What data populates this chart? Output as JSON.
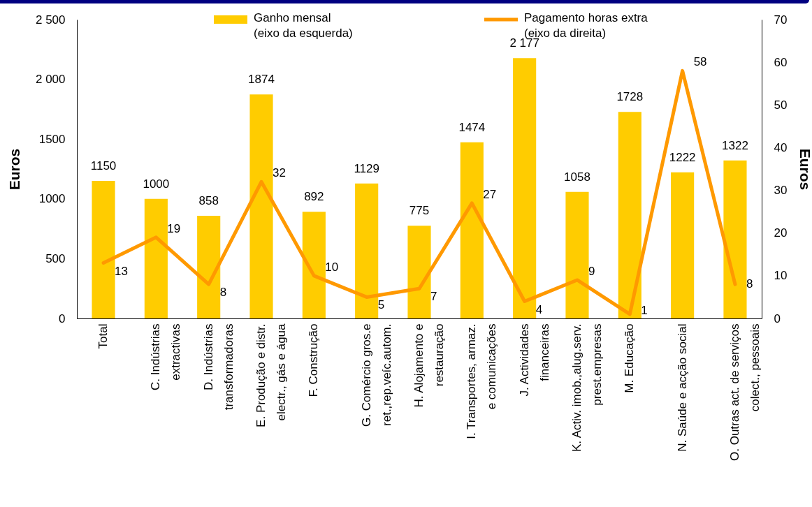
{
  "chart_data": {
    "type": "bar",
    "categories": [
      "Total",
      "C. Indústrias\nextractivas",
      "D. Indústrias\ntransformadoras",
      "E. Produção e distr.\nelectr., gás e água",
      "F. Construção",
      "G. Comércio gros.e\nret.,rep.veíc.autom.",
      "H. Alojamento e\nrestauração",
      "I. Transportes, armaz.\ne comunicações",
      "J. Actividades\nfinanceiras",
      "K. Activ. imob.,alug.serv.\nprest.empresas",
      "M. Educação",
      "N. Saúde e acção social",
      "O. Outras act. de serviços\ncolect., pessoais"
    ],
    "ylabel": "Euros",
    "y2label": "Euros",
    "ylim": [
      0,
      2500
    ],
    "yticks": [
      0,
      500,
      1000,
      1500,
      {
        "value": 2000,
        "label": "2 000"
      },
      {
        "value": 2500,
        "label": "2 500"
      }
    ],
    "y2lim": [
      0,
      70
    ],
    "y2ticks": [
      0,
      10,
      20,
      30,
      40,
      50,
      60,
      70
    ],
    "legend": "top",
    "series": [
      {
        "name": "Ganho mensal\n(eixo da esquerda)",
        "color": "#ffcc00",
        "values": [
          1150,
          1000,
          858,
          1874,
          892,
          1129,
          775,
          1474,
          2177,
          1058,
          1728,
          1222,
          1322
        ],
        "value_labels": [
          "1150",
          "1000",
          "858",
          "1874",
          "892",
          "1129",
          "775",
          "1474",
          "2 177",
          "1058",
          "1728",
          "1222",
          "1322"
        ]
      },
      {
        "name": "Pagamento horas extra\n(eixo da direita)",
        "type": "line",
        "axis": "y2",
        "color": "#ff9900",
        "values": [
          13,
          19,
          8,
          32,
          10,
          5,
          7,
          27,
          4,
          9,
          1,
          58,
          8
        ],
        "value_labels": [
          "13",
          "19",
          "8",
          "32",
          "10",
          "5",
          "7",
          "27",
          "4",
          "9",
          "1",
          "58",
          "8"
        ]
      }
    ]
  }
}
